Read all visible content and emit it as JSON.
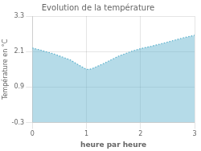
{
  "chart_data": {
    "type": "area",
    "title": "Evolution de la température",
    "xlabel": "heure par heure",
    "ylabel": "Température en °C",
    "x": [
      0,
      0.15,
      0.4,
      0.7,
      0.9,
      1.0,
      1.05,
      1.1,
      1.3,
      1.6,
      1.85,
      2.0,
      2.2,
      2.5,
      2.8,
      3.0
    ],
    "values": [
      2.22,
      2.15,
      2.02,
      1.82,
      1.6,
      1.5,
      1.5,
      1.52,
      1.68,
      1.95,
      2.12,
      2.2,
      2.28,
      2.42,
      2.57,
      2.65
    ],
    "xlim": [
      0,
      3
    ],
    "xticks": [
      0,
      1,
      2,
      3
    ],
    "ylim": [
      -0.3,
      3.3
    ],
    "yticks": [
      -0.3,
      0.9,
      2.1,
      3.3
    ],
    "color": "#5ab0cc",
    "line_style": "dotted",
    "grid": true
  }
}
